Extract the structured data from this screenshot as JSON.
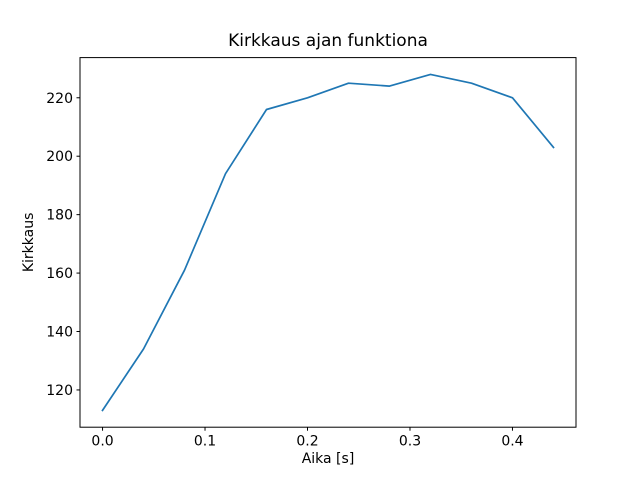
{
  "chart_data": {
    "type": "line",
    "title": "Kirkkaus ajan funktiona",
    "xlabel": "Aika [s]",
    "ylabel": "Kirkkaus",
    "x": [
      0.0,
      0.04,
      0.08,
      0.12,
      0.16,
      0.2,
      0.24,
      0.28,
      0.32,
      0.36,
      0.4,
      0.44
    ],
    "y": [
      113,
      134,
      161,
      194,
      216,
      220,
      225,
      224,
      228,
      225,
      220,
      203
    ],
    "xticks": [
      0.0,
      0.1,
      0.2,
      0.3,
      0.4
    ],
    "xtick_labels": [
      "0.0",
      "0.1",
      "0.2",
      "0.3",
      "0.4"
    ],
    "yticks": [
      120,
      140,
      160,
      180,
      200,
      220
    ],
    "ytick_labels": [
      "120",
      "140",
      "160",
      "180",
      "200",
      "220"
    ],
    "xlim": [
      -0.022,
      0.462
    ],
    "ylim": [
      107.25,
      233.75
    ],
    "line_color": "#1f77b4",
    "axes_edge_color": "#000000",
    "background_color": "#ffffff",
    "grid": false,
    "legend": "none"
  }
}
